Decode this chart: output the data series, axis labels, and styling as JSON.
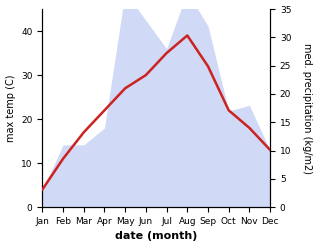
{
  "months": [
    "Jan",
    "Feb",
    "Mar",
    "Apr",
    "May",
    "Jun",
    "Jul",
    "Aug",
    "Sep",
    "Oct",
    "Nov",
    "Dec"
  ],
  "month_indices": [
    1,
    2,
    3,
    4,
    5,
    6,
    7,
    8,
    9,
    10,
    11,
    12
  ],
  "max_temp": [
    4,
    11,
    17,
    22,
    27,
    30,
    35,
    39,
    32,
    22,
    18,
    13
  ],
  "precipitation": [
    3,
    11,
    11,
    14,
    38,
    33,
    28,
    38,
    32,
    17,
    18,
    10
  ],
  "temp_color": "#cc2222",
  "precip_color": "#aabbee",
  "precip_fill_alpha": 0.55,
  "xlabel": "date (month)",
  "ylabel_left": "max temp (C)",
  "ylabel_right": "med. precipitation (kg/m2)",
  "ylim_left": [
    0,
    45
  ],
  "ylim_right": [
    0,
    35
  ],
  "yticks_left": [
    0,
    10,
    20,
    30,
    40
  ],
  "yticks_right": [
    0,
    5,
    10,
    15,
    20,
    25,
    30,
    35
  ],
  "bg_color": "#ffffff",
  "line_width": 1.8,
  "ylabel_fontsize": 7,
  "xlabel_fontsize": 8,
  "tick_fontsize": 6.5
}
